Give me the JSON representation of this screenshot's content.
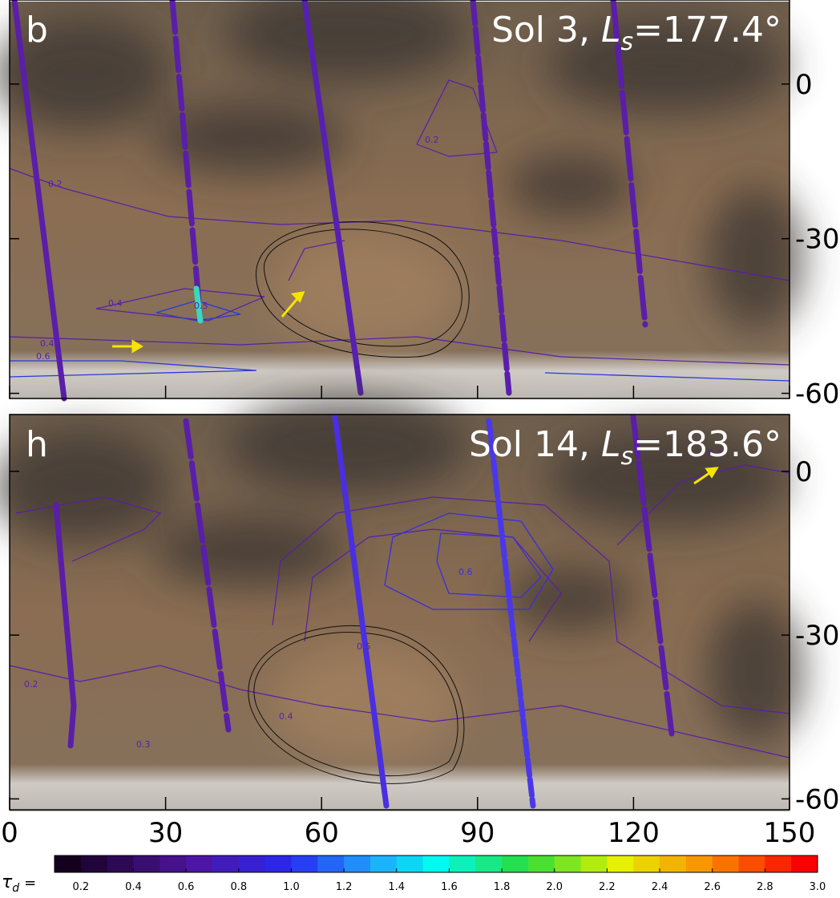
{
  "panels": [
    {
      "letter": "b",
      "title": {
        "prefix": "Sol 3,",
        "ls": "L",
        "ls_sub": "s",
        "ls_value": "=177.4°"
      },
      "ylim": [
        -61,
        16.3
      ],
      "contour_labels": [
        0.2,
        0.4,
        0.5,
        0.4,
        0.6,
        0.2
      ]
    },
    {
      "letter": "h",
      "title": {
        "prefix": "Sol 14,",
        "ls": "L",
        "ls_sub": "s",
        "ls_value": "=183.6°"
      },
      "ylim": [
        -62,
        10.4
      ],
      "contour_labels": [
        0.2,
        0.3,
        0.4,
        0.5,
        0.6,
        0.2
      ]
    }
  ],
  "xlim": [
    0,
    150
  ],
  "xticks": [
    0,
    30,
    60,
    90,
    120,
    150
  ],
  "yticks": [
    0,
    -30,
    -60
  ],
  "colorbar": {
    "label": "τ",
    "label_sub": "d",
    "label_suffix": "=",
    "clim": [
      0.1,
      3.0
    ],
    "ticks": [
      0.2,
      0.4,
      0.6,
      0.8,
      {
        "value": 1.0,
        "label": "1.0"
      },
      1.2,
      1.4,
      1.6,
      1.8,
      {
        "value": 2.0,
        "label": "2.0"
      },
      2.2,
      2.4,
      2.6,
      2.8,
      {
        "value": 3.0,
        "label": "3.0"
      }
    ]
  }
}
